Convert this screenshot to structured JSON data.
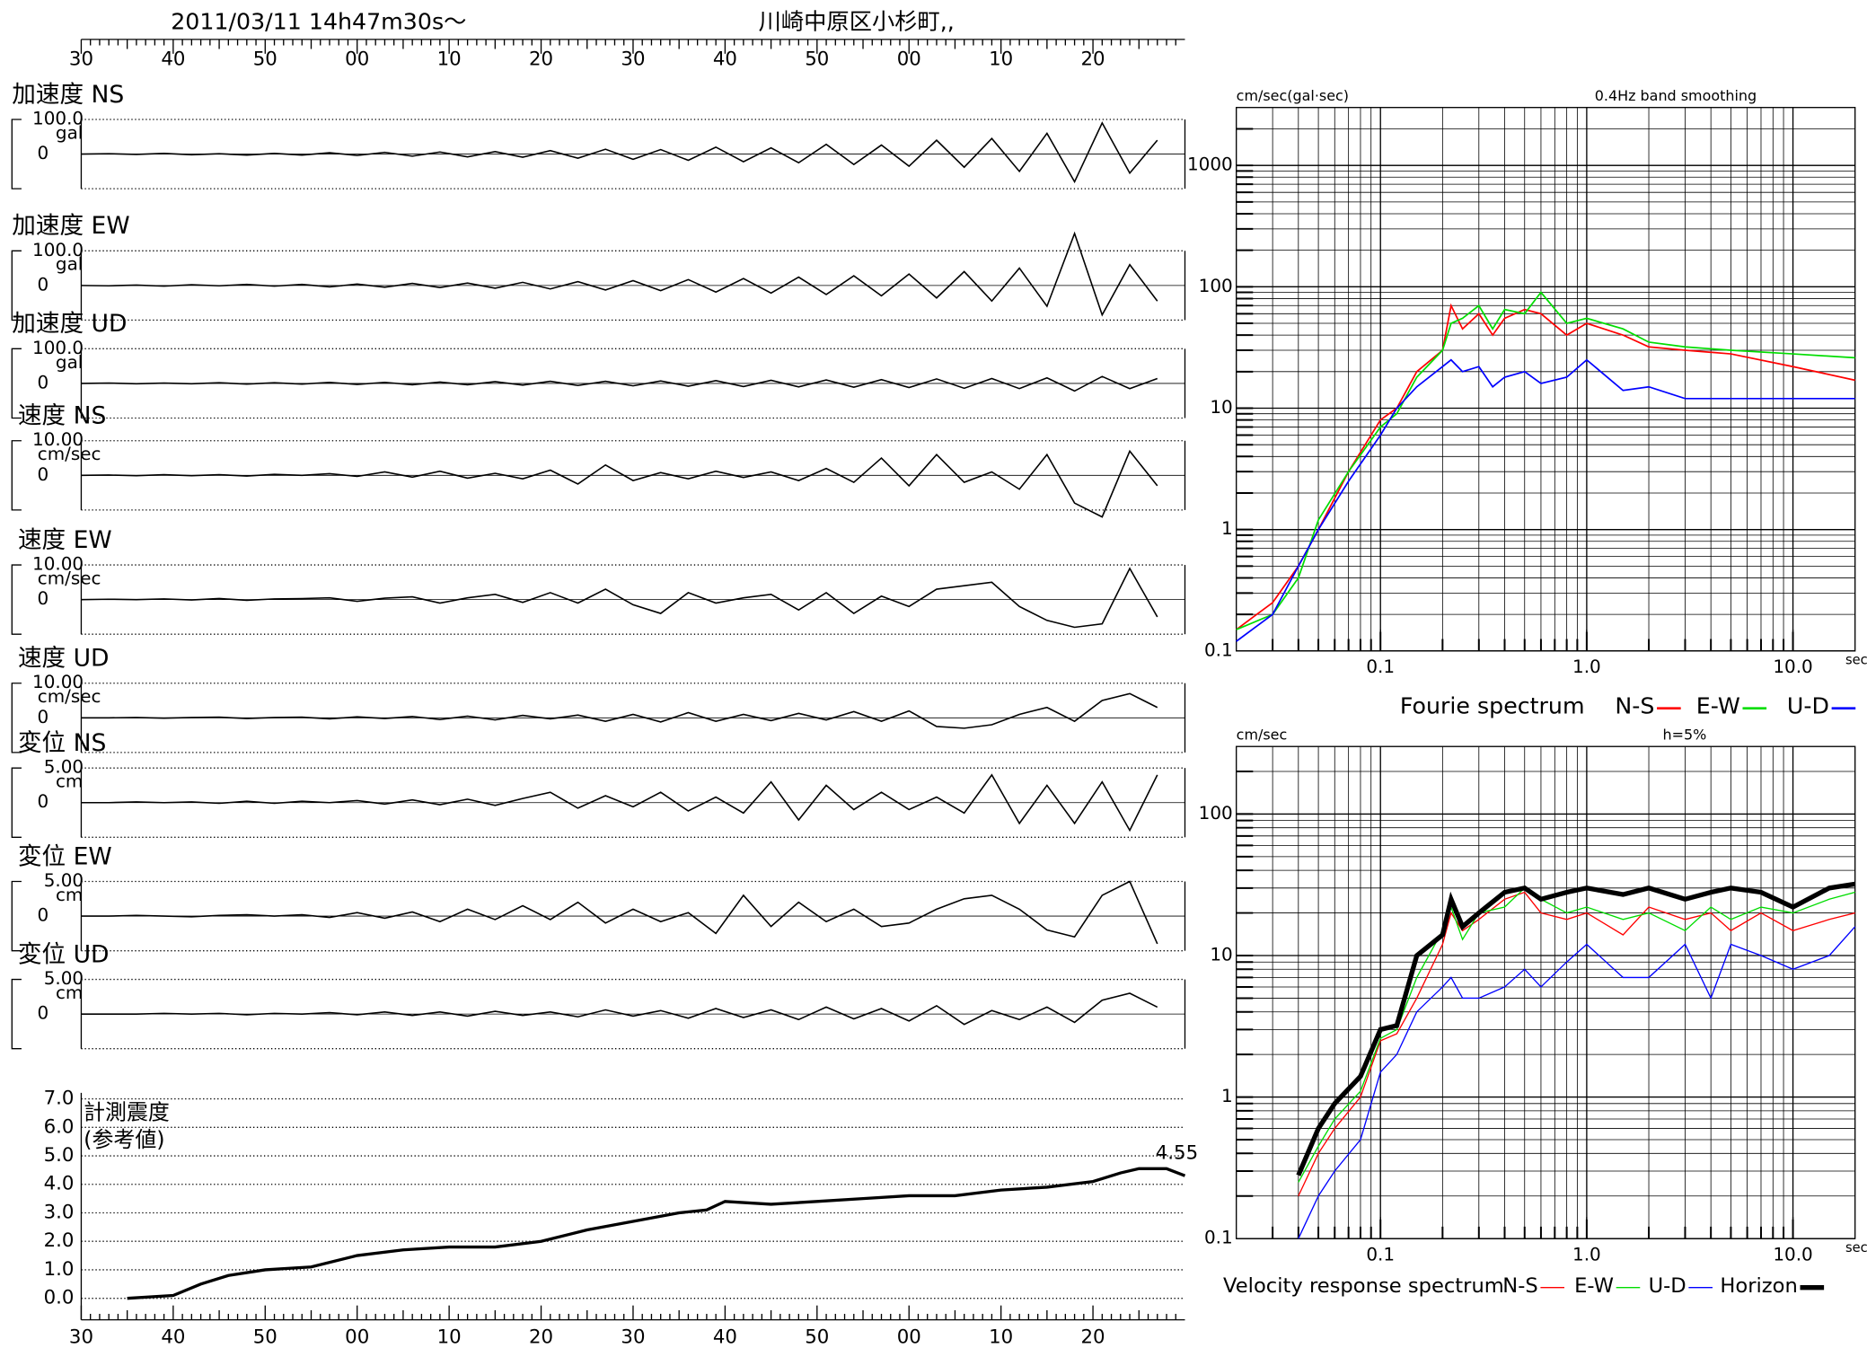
{
  "header": {
    "datetime": "2011/03/11  14h47m30s～",
    "location": "川崎中原区小杉町,,"
  },
  "chart_data": [
    {
      "type": "waveform",
      "x": [
        0,
        3,
        6,
        9,
        12,
        15,
        18,
        21,
        24,
        27,
        30,
        33,
        36,
        39,
        42,
        45,
        48,
        51,
        54,
        57,
        60,
        63,
        66,
        69,
        72,
        75,
        78,
        81,
        84,
        87,
        90,
        93,
        96,
        99,
        102,
        105,
        108,
        111,
        114,
        117
      ],
      "xlim": [
        0,
        120
      ],
      "xticks": [
        {
          "value": 0,
          "label": "30"
        },
        {
          "value": 10,
          "label": "40"
        },
        {
          "value": 20,
          "label": "50"
        },
        {
          "value": 30,
          "label": "00"
        },
        {
          "value": 40,
          "label": "10"
        },
        {
          "value": 50,
          "label": "20"
        },
        {
          "value": 60,
          "label": "30"
        },
        {
          "value": 70,
          "label": "40"
        },
        {
          "value": 80,
          "label": "50"
        },
        {
          "value": 90,
          "label": "00"
        },
        {
          "value": 100,
          "label": "10"
        },
        {
          "value": 110,
          "label": "20"
        }
      ],
      "series": [
        {
          "name": "加速度 NS",
          "unit": "gal",
          "color": "#000000",
          "ylim": [
            -100,
            100
          ],
          "yticks": [
            0,
            {
              "value": 100,
              "label": "100.0"
            }
          ],
          "values": [
            0,
            1,
            -1,
            2,
            -2,
            1,
            -3,
            2,
            -3,
            4,
            -4,
            5,
            -6,
            6,
            -8,
            7,
            -9,
            10,
            -12,
            14,
            -15,
            13,
            -18,
            20,
            -22,
            18,
            -25,
            28,
            -30,
            26,
            -35,
            40,
            -38,
            45,
            -50,
            60,
            -80,
            90,
            -55,
            40
          ]
        },
        {
          "name": "加速度 EW",
          "unit": "gal",
          "color": "#000000",
          "ylim": [
            -100,
            100
          ],
          "yticks": [
            0,
            {
              "value": 100,
              "label": "100.0"
            }
          ],
          "values": [
            0,
            -1,
            1,
            -2,
            2,
            -1,
            3,
            -2,
            3,
            -4,
            4,
            -5,
            6,
            -6,
            7,
            -8,
            9,
            -10,
            11,
            -13,
            14,
            -15,
            17,
            -19,
            20,
            -22,
            24,
            -26,
            28,
            -30,
            33,
            -36,
            40,
            -45,
            50,
            -60,
            150,
            -85,
            60,
            -45
          ]
        },
        {
          "name": "加速度 UD",
          "unit": "gal",
          "color": "#000000",
          "ylim": [
            -100,
            100
          ],
          "yticks": [
            0,
            {
              "value": 100,
              "label": "100.0"
            }
          ],
          "values": [
            0,
            1,
            -1,
            1,
            -1,
            2,
            -2,
            2,
            -2,
            3,
            -3,
            3,
            -4,
            4,
            -4,
            5,
            -5,
            6,
            -6,
            6,
            -7,
            7,
            -8,
            8,
            -9,
            9,
            -10,
            10,
            -11,
            11,
            -12,
            13,
            -14,
            14,
            -15,
            16,
            -22,
            20,
            -15,
            14
          ]
        },
        {
          "name": "速度 NS",
          "unit": "cm/sec",
          "color": "#000000",
          "ylim": [
            -10,
            10
          ],
          "yticks": [
            0,
            {
              "value": 10,
              "label": "10.00"
            }
          ],
          "values": [
            0,
            0.1,
            -0.1,
            0.2,
            -0.1,
            0.2,
            -0.2,
            0.3,
            0,
            0.5,
            -0.3,
            1,
            -0.5,
            1.2,
            -0.8,
            0.6,
            -1,
            1.5,
            -2.5,
            3,
            -1.5,
            0.8,
            -1,
            1.2,
            -0.6,
            1,
            -1.5,
            2,
            -2,
            5,
            -3,
            6,
            -2,
            1,
            -4,
            6,
            -8,
            -12,
            7,
            -3
          ]
        },
        {
          "name": "速度 EW",
          "unit": "cm/sec",
          "color": "#000000",
          "ylim": [
            -10,
            10
          ],
          "yticks": [
            0,
            {
              "value": 10,
              "label": "10.00"
            }
          ],
          "values": [
            0,
            0.1,
            0,
            0.2,
            -0.1,
            0.3,
            -0.2,
            0.2,
            0.3,
            0.5,
            -0.5,
            0.4,
            0.8,
            -1,
            0.5,
            1.5,
            -0.8,
            2,
            -1,
            3,
            -1.5,
            -4,
            2,
            -1,
            0.5,
            1.5,
            -3,
            2,
            -4,
            1,
            -2,
            3,
            4,
            5,
            -2,
            -6,
            -8,
            -7,
            9,
            -5
          ]
        },
        {
          "name": "速度 UD",
          "unit": "cm/sec",
          "color": "#000000",
          "ylim": [
            -10,
            10
          ],
          "yticks": [
            0,
            {
              "value": 10,
              "label": "10.00"
            }
          ],
          "values": [
            0,
            0,
            0.1,
            -0.1,
            0.1,
            0.2,
            -0.2,
            0.1,
            0.2,
            -0.3,
            0.3,
            -0.2,
            0.4,
            -0.5,
            0.5,
            -0.6,
            0.7,
            -0.3,
            0.8,
            -1,
            1,
            -1.2,
            1.5,
            -1,
            1,
            -0.8,
            1.3,
            -0.6,
            1.8,
            -1,
            2,
            -2.5,
            -3,
            -2,
            1,
            3,
            -1,
            5,
            7,
            3
          ]
        },
        {
          "name": "変位 NS",
          "unit": "cm",
          "color": "#000000",
          "ylim": [
            -5,
            5
          ],
          "yticks": [
            0,
            {
              "value": 5,
              "label": "5.00"
            }
          ],
          "values": [
            0,
            0,
            0.1,
            0,
            0.1,
            -0.1,
            0.2,
            -0.1,
            0.2,
            0,
            0.3,
            -0.2,
            0.4,
            -0.3,
            0.5,
            -0.4,
            0.6,
            1.5,
            -0.8,
            1,
            -0.6,
            1.5,
            -1.2,
            0.8,
            -1.5,
            3,
            -2.5,
            2.5,
            -1,
            1.5,
            -1,
            0.8,
            -1.5,
            4,
            -3,
            2.5,
            -3,
            3,
            -4,
            4
          ]
        },
        {
          "name": "変位 EW",
          "unit": "cm",
          "color": "#000000",
          "ylim": [
            -5,
            5
          ],
          "yticks": [
            0,
            {
              "value": 5,
              "label": "5.00"
            }
          ],
          "values": [
            0,
            0,
            0.1,
            0,
            -0.1,
            0.1,
            0.2,
            0,
            0.2,
            -0.2,
            0.5,
            -0.3,
            0.6,
            -0.8,
            1,
            -0.5,
            1.5,
            -0.5,
            2,
            -1,
            1,
            -0.8,
            0.5,
            -2.5,
            3,
            -1.5,
            2,
            -0.8,
            1,
            -1.5,
            -1,
            1,
            2.5,
            3,
            1,
            -2,
            -3,
            3,
            5,
            -4
          ]
        },
        {
          "name": "変位 UD",
          "unit": "cm",
          "color": "#000000",
          "ylim": [
            -5,
            5
          ],
          "yticks": [
            0,
            {
              "value": 5,
              "label": "5.00"
            }
          ],
          "values": [
            0,
            0,
            0,
            0.1,
            0,
            0.1,
            -0.1,
            0.1,
            0,
            0.2,
            -0.1,
            0.3,
            -0.2,
            0.3,
            -0.3,
            0.4,
            -0.2,
            0.3,
            -0.4,
            0.6,
            -0.3,
            0.5,
            -0.6,
            0.8,
            -0.5,
            0.6,
            -0.8,
            1,
            -0.7,
            0.8,
            -1,
            1.2,
            -1.5,
            0.5,
            -0.8,
            1,
            -1.2,
            2,
            3,
            1
          ]
        }
      ]
    },
    {
      "type": "intensity",
      "title": "計測震度",
      "subtitle": "(参考値)",
      "annotation": "4.55",
      "color": "#000000",
      "x": [
        5,
        10,
        13,
        16,
        20,
        25,
        30,
        35,
        40,
        45,
        50,
        55,
        60,
        65,
        68,
        70,
        75,
        80,
        85,
        90,
        95,
        100,
        105,
        110,
        113,
        115,
        118,
        120
      ],
      "values": [
        0,
        0.1,
        0.5,
        0.8,
        1.0,
        1.1,
        1.5,
        1.7,
        1.8,
        1.8,
        2.0,
        2.4,
        2.7,
        3.0,
        3.1,
        3.4,
        3.3,
        3.4,
        3.5,
        3.6,
        3.6,
        3.8,
        3.9,
        4.1,
        4.4,
        4.55,
        4.55,
        4.3
      ],
      "xlim": [
        0,
        120
      ],
      "xticks": [
        {
          "value": 0,
          "label": "30"
        },
        {
          "value": 10,
          "label": "40"
        },
        {
          "value": 20,
          "label": "50"
        },
        {
          "value": 30,
          "label": "00"
        },
        {
          "value": 40,
          "label": "10"
        },
        {
          "value": 50,
          "label": "20"
        },
        {
          "value": 60,
          "label": "30"
        },
        {
          "value": 70,
          "label": "40"
        },
        {
          "value": 80,
          "label": "50"
        },
        {
          "value": 90,
          "label": "00"
        },
        {
          "value": 100,
          "label": "10"
        },
        {
          "value": 110,
          "label": "20"
        }
      ],
      "ylim": [
        0,
        7
      ],
      "yticks": [
        {
          "value": 0,
          "label": "0.0"
        },
        {
          "value": 1,
          "label": "1.0"
        },
        {
          "value": 2,
          "label": "2.0"
        },
        {
          "value": 3,
          "label": "3.0"
        },
        {
          "value": 4,
          "label": "4.0"
        },
        {
          "value": 5,
          "label": "5.0"
        },
        {
          "value": 6,
          "label": "6.0"
        },
        {
          "value": 7,
          "label": "7.0"
        }
      ],
      "grid": true
    },
    {
      "type": "spectrum",
      "title": "Fourie spectrum",
      "y_label": "cm/sec(gal·sec)",
      "note": "0.4Hz band smoothing",
      "x_label": "sec",
      "log_x": true,
      "log_y": true,
      "grid": true,
      "xlim": [
        0.02,
        20
      ],
      "xticks": [
        0.1,
        {
          "value": 1,
          "label": "1.0"
        },
        {
          "value": 10,
          "label": "10.0"
        }
      ],
      "ylim": [
        0.1,
        3000
      ],
      "yticks": [
        0.1,
        1,
        10,
        100,
        1000
      ],
      "x": [
        0.02,
        0.03,
        0.04,
        0.05,
        0.07,
        0.1,
        0.12,
        0.15,
        0.2,
        0.22,
        0.25,
        0.3,
        0.35,
        0.4,
        0.5,
        0.6,
        0.8,
        1,
        1.5,
        2,
        3,
        5,
        10,
        20
      ],
      "series": [
        {
          "name": "N-S",
          "color": "#ff0000",
          "values": [
            0.15,
            0.25,
            0.5,
            1,
            3,
            8,
            10,
            20,
            30,
            70,
            45,
            60,
            40,
            55,
            65,
            60,
            40,
            50,
            40,
            32,
            30,
            28,
            22,
            17
          ]
        },
        {
          "name": "E-W",
          "color": "#00dd00",
          "values": [
            0.15,
            0.2,
            0.4,
            1.2,
            3,
            7,
            9,
            18,
            30,
            50,
            55,
            70,
            45,
            65,
            60,
            90,
            50,
            55,
            45,
            35,
            32,
            30,
            28,
            26
          ]
        },
        {
          "name": "U-D",
          "color": "#0000ff",
          "values": [
            0.12,
            0.2,
            0.5,
            1,
            2.5,
            6,
            10,
            15,
            22,
            25,
            20,
            22,
            15,
            18,
            20,
            16,
            18,
            25,
            14,
            15,
            12,
            12,
            12,
            12
          ]
        }
      ]
    },
    {
      "type": "spectrum",
      "title": "Velocity response spectrum",
      "y_label": "cm/sec",
      "note": "h=5%",
      "x_label": "sec",
      "log_x": true,
      "log_y": true,
      "grid": true,
      "xlim": [
        0.02,
        20
      ],
      "xticks": [
        0.1,
        {
          "value": 1,
          "label": "1.0"
        },
        {
          "value": 10,
          "label": "10.0"
        }
      ],
      "ylim": [
        0.1,
        300
      ],
      "yticks": [
        0.1,
        1,
        10,
        100
      ],
      "x": [
        0.04,
        0.05,
        0.06,
        0.08,
        0.1,
        0.12,
        0.15,
        0.2,
        0.22,
        0.25,
        0.3,
        0.4,
        0.5,
        0.6,
        0.8,
        1,
        1.5,
        2,
        3,
        4,
        5,
        7,
        10,
        15,
        20
      ],
      "series": [
        {
          "name": "N-S",
          "color": "#ff0000",
          "line_width": 1,
          "values": [
            0.2,
            0.4,
            0.6,
            1,
            2.5,
            2.8,
            5,
            12,
            20,
            15,
            18,
            25,
            28,
            20,
            18,
            20,
            14,
            22,
            18,
            20,
            15,
            20,
            15,
            18,
            20
          ]
        },
        {
          "name": "E-W",
          "color": "#00dd00",
          "line_width": 1,
          "values": [
            0.25,
            0.45,
            0.7,
            1.1,
            2.6,
            3,
            7,
            15,
            22,
            13,
            20,
            22,
            30,
            25,
            20,
            22,
            18,
            20,
            15,
            22,
            18,
            22,
            20,
            25,
            28
          ]
        },
        {
          "name": "U-D",
          "color": "#0000ff",
          "line_width": 1,
          "values": [
            0.1,
            0.2,
            0.3,
            0.5,
            1.5,
            2,
            4,
            6,
            7,
            5,
            5,
            6,
            8,
            6,
            9,
            12,
            7,
            7,
            12,
            5,
            12,
            10,
            8,
            10,
            16
          ]
        },
        {
          "name": "Horizon",
          "color": "#000000",
          "line_width": 4,
          "values": [
            0.28,
            0.6,
            0.9,
            1.4,
            3,
            3.2,
            10,
            14,
            25,
            16,
            20,
            28,
            30,
            25,
            28,
            30,
            27,
            30,
            25,
            28,
            30,
            28,
            22,
            30,
            32
          ]
        }
      ]
    }
  ]
}
